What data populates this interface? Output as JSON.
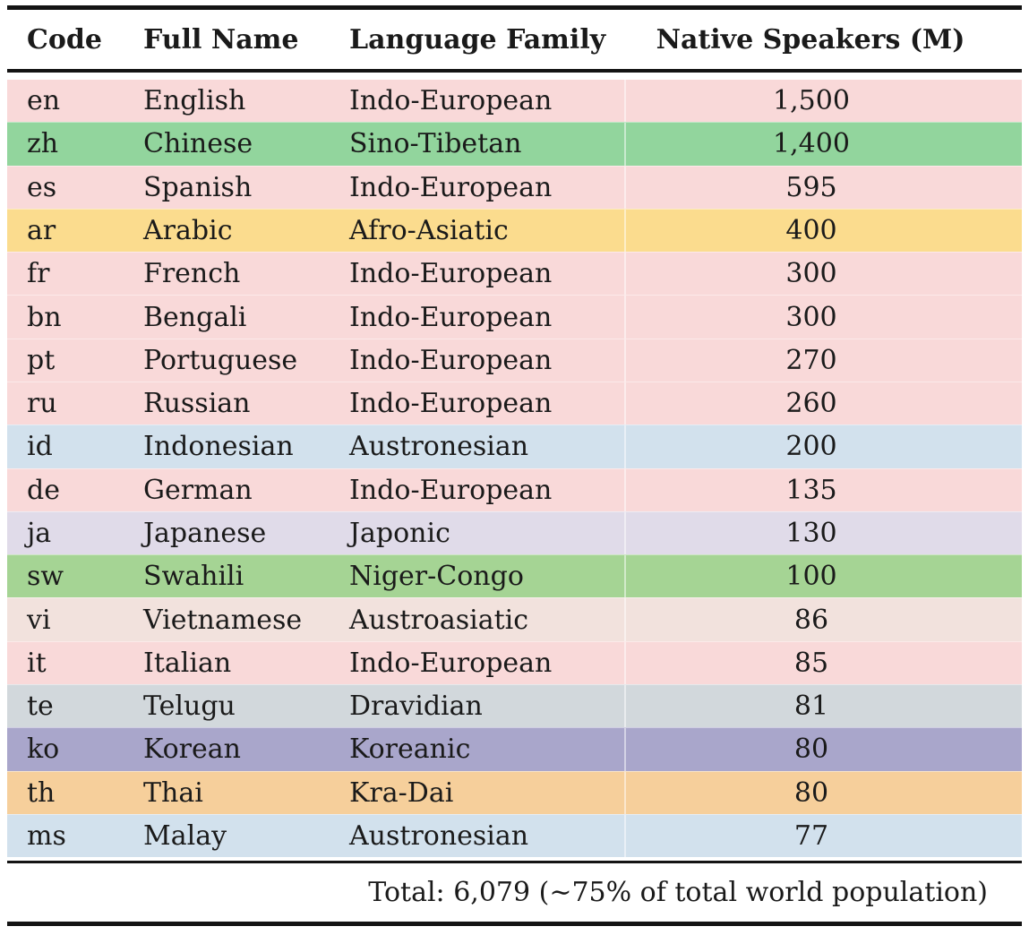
{
  "table": {
    "columns": [
      {
        "label": "Code"
      },
      {
        "label": "Full Name"
      },
      {
        "label": "Language Family"
      },
      {
        "label": "Native Speakers (M)"
      }
    ],
    "rows": [
      {
        "code": "en",
        "name": "English",
        "family": "Indo-European",
        "speakers": "1,500",
        "color": "#f9d9d9"
      },
      {
        "code": "zh",
        "name": "Chinese",
        "family": "Sino-Tibetan",
        "speakers": "1,400",
        "color": "#92d59d"
      },
      {
        "code": "es",
        "name": "Spanish",
        "family": "Indo-European",
        "speakers": "595",
        "color": "#f9d9d9"
      },
      {
        "code": "ar",
        "name": "Arabic",
        "family": "Afro-Asiatic",
        "speakers": "400",
        "color": "#fbdc8e"
      },
      {
        "code": "fr",
        "name": "French",
        "family": "Indo-European",
        "speakers": "300",
        "color": "#f9d9d9"
      },
      {
        "code": "bn",
        "name": "Bengali",
        "family": "Indo-European",
        "speakers": "300",
        "color": "#f9d9d9"
      },
      {
        "code": "pt",
        "name": "Portuguese",
        "family": "Indo-European",
        "speakers": "270",
        "color": "#f9d9d9"
      },
      {
        "code": "ru",
        "name": "Russian",
        "family": "Indo-European",
        "speakers": "260",
        "color": "#f9d9d9"
      },
      {
        "code": "id",
        "name": "Indonesian",
        "family": "Austronesian",
        "speakers": "200",
        "color": "#d2e1ed"
      },
      {
        "code": "de",
        "name": "German",
        "family": "Indo-European",
        "speakers": "135",
        "color": "#f9d9d9"
      },
      {
        "code": "ja",
        "name": "Japanese",
        "family": "Japonic",
        "speakers": "130",
        "color": "#e0dbe9"
      },
      {
        "code": "sw",
        "name": "Swahili",
        "family": "Niger-Congo",
        "speakers": "100",
        "color": "#a5d494"
      },
      {
        "code": "vi",
        "name": "Vietnamese",
        "family": "Austroasiatic",
        "speakers": "86",
        "color": "#f2e2dd"
      },
      {
        "code": "it",
        "name": "Italian",
        "family": "Indo-European",
        "speakers": "85",
        "color": "#f9d9d9"
      },
      {
        "code": "te",
        "name": "Telugu",
        "family": "Dravidian",
        "speakers": "81",
        "color": "#d2d8dc"
      },
      {
        "code": "ko",
        "name": "Korean",
        "family": "Koreanic",
        "speakers": "80",
        "color": "#a9a6cb"
      },
      {
        "code": "th",
        "name": "Thai",
        "family": "Kra-Dai",
        "speakers": "80",
        "color": "#f6cf9b"
      },
      {
        "code": "ms",
        "name": "Malay",
        "family": "Austronesian",
        "speakers": "77",
        "color": "#d2e1ed"
      }
    ],
    "footer": {
      "total_label": "Total: 6,079 (∼75% of total world population)"
    }
  },
  "colors": {
    "rule": "#141414",
    "text": "#1a1a1a",
    "background": "#ffffff"
  }
}
